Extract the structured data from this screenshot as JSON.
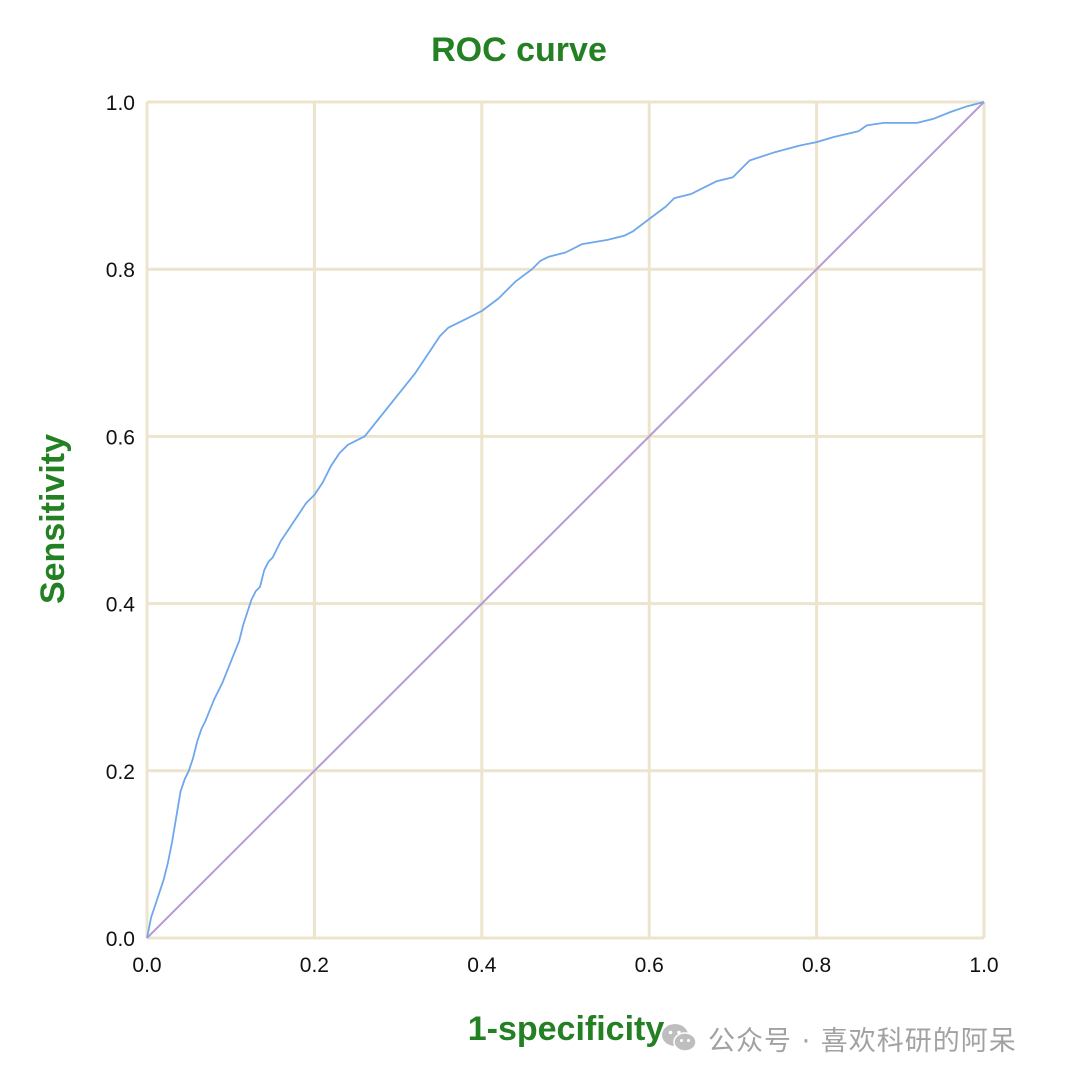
{
  "colors": {
    "title": "#238023",
    "grid": "#ece4cc",
    "roc_curve": "#6fa7ec",
    "reference_line": "#b79ad6",
    "tick_text": "#111111"
  },
  "watermark": {
    "icon": "wechat-icon",
    "text": "公众号 · 喜欢科研的阿呆"
  },
  "chart_data": {
    "type": "line",
    "title": "ROC curve",
    "xlabel": "1-specificity",
    "ylabel": "Sensitivity",
    "xlim": [
      0,
      1
    ],
    "ylim": [
      0,
      1
    ],
    "x_ticks": [
      "0.0",
      "0.2",
      "0.4",
      "0.6",
      "0.8",
      "1.0"
    ],
    "y_ticks": [
      "0.0",
      "0.2",
      "0.4",
      "0.6",
      "0.8",
      "1.0"
    ],
    "grid": true,
    "legend": "none",
    "series": [
      {
        "role": "roc",
        "color": "#6fa7ec",
        "x": [
          0.0,
          0.002,
          0.005,
          0.01,
          0.015,
          0.02,
          0.025,
          0.03,
          0.035,
          0.04,
          0.045,
          0.05,
          0.055,
          0.06,
          0.065,
          0.07,
          0.08,
          0.09,
          0.1,
          0.11,
          0.115,
          0.12,
          0.125,
          0.13,
          0.135,
          0.14,
          0.145,
          0.15,
          0.16,
          0.17,
          0.18,
          0.19,
          0.2,
          0.21,
          0.22,
          0.23,
          0.24,
          0.25,
          0.26,
          0.28,
          0.3,
          0.32,
          0.33,
          0.34,
          0.35,
          0.36,
          0.38,
          0.4,
          0.42,
          0.44,
          0.46,
          0.47,
          0.48,
          0.5,
          0.52,
          0.55,
          0.57,
          0.58,
          0.6,
          0.62,
          0.63,
          0.65,
          0.66,
          0.68,
          0.7,
          0.72,
          0.75,
          0.78,
          0.8,
          0.82,
          0.85,
          0.86,
          0.88,
          0.9,
          0.92,
          0.94,
          0.96,
          0.98,
          1.0
        ],
        "y": [
          0.0,
          0.01,
          0.025,
          0.04,
          0.055,
          0.07,
          0.09,
          0.115,
          0.145,
          0.175,
          0.19,
          0.2,
          0.215,
          0.235,
          0.25,
          0.26,
          0.285,
          0.305,
          0.33,
          0.355,
          0.375,
          0.39,
          0.405,
          0.415,
          0.42,
          0.44,
          0.45,
          0.455,
          0.475,
          0.49,
          0.505,
          0.52,
          0.53,
          0.545,
          0.565,
          0.58,
          0.59,
          0.595,
          0.6,
          0.625,
          0.65,
          0.675,
          0.69,
          0.705,
          0.72,
          0.73,
          0.74,
          0.75,
          0.765,
          0.785,
          0.8,
          0.81,
          0.815,
          0.82,
          0.83,
          0.835,
          0.84,
          0.845,
          0.86,
          0.875,
          0.885,
          0.89,
          0.895,
          0.905,
          0.91,
          0.93,
          0.94,
          0.948,
          0.952,
          0.958,
          0.965,
          0.972,
          0.975,
          0.975,
          0.975,
          0.98,
          0.988,
          0.995,
          1.0
        ]
      },
      {
        "role": "reference",
        "color": "#b79ad6",
        "x": [
          0.0,
          1.0
        ],
        "y": [
          0.0,
          1.0
        ]
      }
    ]
  }
}
